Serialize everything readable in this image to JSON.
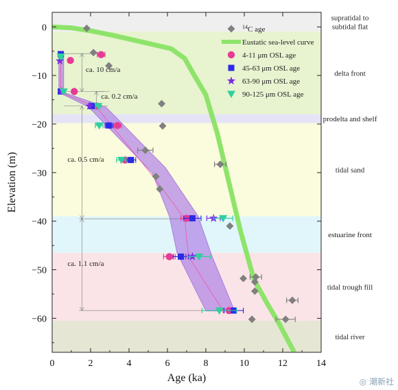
{
  "watermark": {
    "icon": "wechat-icon",
    "text": "潮新社"
  },
  "chart_data": {
    "type": "scatter",
    "xlabel": "Age (ka)",
    "ylabel": "Elevation (m)",
    "xlim": [
      0,
      14
    ],
    "ylim": [
      -67,
      3
    ],
    "xticks": [
      0,
      2,
      4,
      6,
      8,
      10,
      12,
      14
    ],
    "yticks": [
      0,
      -10,
      -20,
      -30,
      -40,
      -50,
      -60
    ],
    "grid": false,
    "legend_position": "top-right",
    "zones": [
      {
        "label_lines": [
          "supratidal to",
          "subtidal flat"
        ],
        "top": 3,
        "bottom": -1,
        "color": "#efefef"
      },
      {
        "label_lines": [
          "delta front"
        ],
        "top": -1,
        "bottom": -18,
        "color": "#e8f3d0"
      },
      {
        "label_lines": [
          "prodelta and shelf"
        ],
        "top": -18,
        "bottom": -19.8,
        "color": "#e4e4f6"
      },
      {
        "label_lines": [
          "tidal sand"
        ],
        "top": -19.8,
        "bottom": -39,
        "color": "#fbfbdd"
      },
      {
        "label_lines": [
          "estuarine front"
        ],
        "top": -39,
        "bottom": -46.5,
        "color": "#e0f6fa"
      },
      {
        "label_lines": [
          "tidal trough fill"
        ],
        "top": -46.5,
        "bottom": -60.5,
        "color": "#fbe4e7"
      },
      {
        "label_lines": [
          "tidal river"
        ],
        "top": -60.5,
        "bottom": -67,
        "color": "#e6e6d5"
      }
    ],
    "eustatic_curve": {
      "name": "Eustatic sea-level curve",
      "color": "#8ee46a",
      "points": [
        [
          0,
          0
        ],
        [
          1,
          -0.2
        ],
        [
          2,
          -0.8
        ],
        [
          3,
          -1.6
        ],
        [
          4,
          -2.5
        ],
        [
          5,
          -3.4
        ],
        [
          6.2,
          -4.5
        ],
        [
          6.9,
          -6.5
        ],
        [
          7.4,
          -10
        ],
        [
          8,
          -14
        ],
        [
          8.6,
          -22
        ],
        [
          9.2,
          -32
        ],
        [
          9.8,
          -42
        ],
        [
          10.5,
          -52
        ],
        [
          11.2,
          -57
        ],
        [
          11.8,
          -61
        ],
        [
          12.2,
          -64
        ],
        [
          12.6,
          -67
        ]
      ]
    },
    "band": {
      "color": "#b48ae6",
      "left_edge": [
        [
          0.35,
          -5.5
        ],
        [
          0.35,
          -13.5
        ],
        [
          1.9,
          -16.5
        ],
        [
          5.2,
          -30
        ],
        [
          6.1,
          -39
        ],
        [
          6.5,
          -46.5
        ],
        [
          8.0,
          -58.5
        ]
      ],
      "right_edge": [
        [
          0.6,
          -5.5
        ],
        [
          0.6,
          -13.5
        ],
        [
          2.8,
          -16.5
        ],
        [
          5.9,
          -29
        ],
        [
          7.6,
          -39
        ],
        [
          8.3,
          -47
        ],
        [
          9.5,
          -58.5
        ]
      ]
    },
    "centerline": [
      [
        0.45,
        -5.5
      ],
      [
        0.45,
        -13.5
      ],
      [
        2.3,
        -16.5
      ],
      [
        5.1,
        -30
      ],
      [
        6.9,
        -39.5
      ],
      [
        7.1,
        -47.3
      ],
      [
        8.9,
        -58.5
      ]
    ],
    "series": [
      {
        "name": "14C age",
        "marker": "diamond",
        "color": "#808080",
        "points": [
          {
            "x": 1.8,
            "y": -0.3,
            "xerr": 0
          },
          {
            "x": 2.15,
            "y": -5.3,
            "xerr": 0
          },
          {
            "x": 2.95,
            "y": -8.0,
            "xerr": 0
          },
          {
            "x": 5.7,
            "y": -15.8,
            "xerr": 0
          },
          {
            "x": 5.75,
            "y": -20.4,
            "xerr": 0
          },
          {
            "x": 4.85,
            "y": -25.4,
            "xerr": 0.4
          },
          {
            "x": 8.75,
            "y": -28.3,
            "xerr": 0.3
          },
          {
            "x": 5.4,
            "y": -30.8,
            "xerr": 0
          },
          {
            "x": 5.6,
            "y": -33.4,
            "xerr": 0
          },
          {
            "x": 9.25,
            "y": -41.0,
            "xerr": 0
          },
          {
            "x": 9.95,
            "y": -51.8,
            "xerr": 0
          },
          {
            "x": 10.6,
            "y": -51.5,
            "xerr": 0.3
          },
          {
            "x": 10.55,
            "y": -52.5,
            "xerr": 0
          },
          {
            "x": 10.55,
            "y": -54.4,
            "xerr": 0
          },
          {
            "x": 12.5,
            "y": -56.3,
            "xerr": 0.3
          },
          {
            "x": 10.4,
            "y": -60.2,
            "xerr": 0
          },
          {
            "x": 12.15,
            "y": -60.2,
            "xerr": 0.5
          }
        ]
      },
      {
        "name": "4-11 μm OSL age",
        "marker": "circle",
        "color": "#e83a94",
        "points": [
          {
            "x": 2.55,
            "y": -5.7,
            "xerr": 0.2
          },
          {
            "x": 0.95,
            "y": -6.9,
            "xerr": 0
          },
          {
            "x": 1.15,
            "y": -13.3,
            "xerr": 0
          },
          {
            "x": 2.3,
            "y": -16.3,
            "xerr": 0.15
          },
          {
            "x": 3.4,
            "y": -20.3,
            "xerr": 0.2
          },
          {
            "x": 3.8,
            "y": -27.4,
            "xerr": 0.2
          },
          {
            "x": 7.0,
            "y": -39.4,
            "xerr": 0.3
          },
          {
            "x": 6.1,
            "y": -47.3,
            "xerr": 0.3
          },
          {
            "x": 9.2,
            "y": -58.4,
            "xerr": 0.3
          }
        ]
      },
      {
        "name": "45-63 μm OSL age",
        "marker": "square",
        "color": "#2b2be6",
        "points": [
          {
            "x": 0.45,
            "y": -5.6,
            "xerr": 0.1
          },
          {
            "x": 0.45,
            "y": -13.3,
            "xerr": 0.1
          },
          {
            "x": 2.05,
            "y": -16.3,
            "xerr": 0.15
          },
          {
            "x": 2.95,
            "y": -20.3,
            "xerr": 0.2
          },
          {
            "x": 4.1,
            "y": -27.4,
            "xerr": 0.25
          },
          {
            "x": 7.3,
            "y": -39.4,
            "xerr": 0.45
          },
          {
            "x": 6.7,
            "y": -47.3,
            "xerr": 0.4
          },
          {
            "x": 9.45,
            "y": -58.4,
            "xerr": 0.5
          }
        ]
      },
      {
        "name": "63-90 μm OSL age",
        "marker": "star",
        "color": "#7b2be6",
        "points": [
          {
            "x": 0.4,
            "y": -7.0,
            "xerr": 0
          },
          {
            "x": 0.5,
            "y": -13.3,
            "xerr": 0
          },
          {
            "x": 1.95,
            "y": -16.3,
            "xerr": 0
          },
          {
            "x": 8.4,
            "y": -39.4,
            "xerr": 0.35
          },
          {
            "x": 7.3,
            "y": -47.3,
            "xerr": 0.35
          }
        ]
      },
      {
        "name": "90-125 μm OSL age",
        "marker": "triangle-down",
        "color": "#2fcf9e",
        "points": [
          {
            "x": 0.45,
            "y": -6.1,
            "xerr": 0.1
          },
          {
            "x": 0.6,
            "y": -13.3,
            "xerr": 0.1
          },
          {
            "x": 2.4,
            "y": -16.3,
            "xerr": 0.15
          },
          {
            "x": 2.45,
            "y": -20.3,
            "xerr": 0.2
          },
          {
            "x": 3.6,
            "y": -27.4,
            "xerr": 0.25
          },
          {
            "x": 8.9,
            "y": -39.4,
            "xerr": 0.5
          },
          {
            "x": 7.65,
            "y": -47.3,
            "xerr": 0.6
          },
          {
            "x": 8.7,
            "y": -58.4,
            "xerr": 0.9
          }
        ]
      }
    ],
    "rate_annotations": [
      {
        "label": "ca. 10 cm/a",
        "text_at": [
          1.75,
          -9.3
        ],
        "arrow_x": 1.55,
        "y_top": -5.5,
        "y_bottom": -13.3,
        "guides": [
          [
            0.5,
            2.7,
            -5.5
          ],
          [
            0.5,
            2.7,
            -13.3
          ]
        ]
      },
      {
        "label": "ca. 0.2 cm/a",
        "text_at": [
          2.55,
          -14.8
        ],
        "arrow_x": 2.3,
        "y_top": -13.3,
        "y_bottom": -16.3,
        "guides": [
          [
            2.3,
            3.0,
            -13.3
          ],
          [
            2.0,
            2.9,
            -16.3
          ]
        ]
      },
      {
        "label": "ca. 0.5 cm/a",
        "text_at": [
          0.8,
          -27.8
        ],
        "arrow_x": 1.55,
        "y_top": -16.3,
        "y_bottom": -39.5,
        "guides": [
          [
            0.6,
            1.6,
            -16.3
          ]
        ]
      },
      {
        "label": "ca. 1.1 cm/a",
        "text_at": [
          0.8,
          -49.2
        ],
        "arrow_x": 1.55,
        "y_top": -39.5,
        "y_bottom": -58.4,
        "guides": [
          [
            1.4,
            7.0,
            -39.5
          ],
          [
            1.4,
            8.8,
            -58.4
          ]
        ]
      }
    ]
  }
}
